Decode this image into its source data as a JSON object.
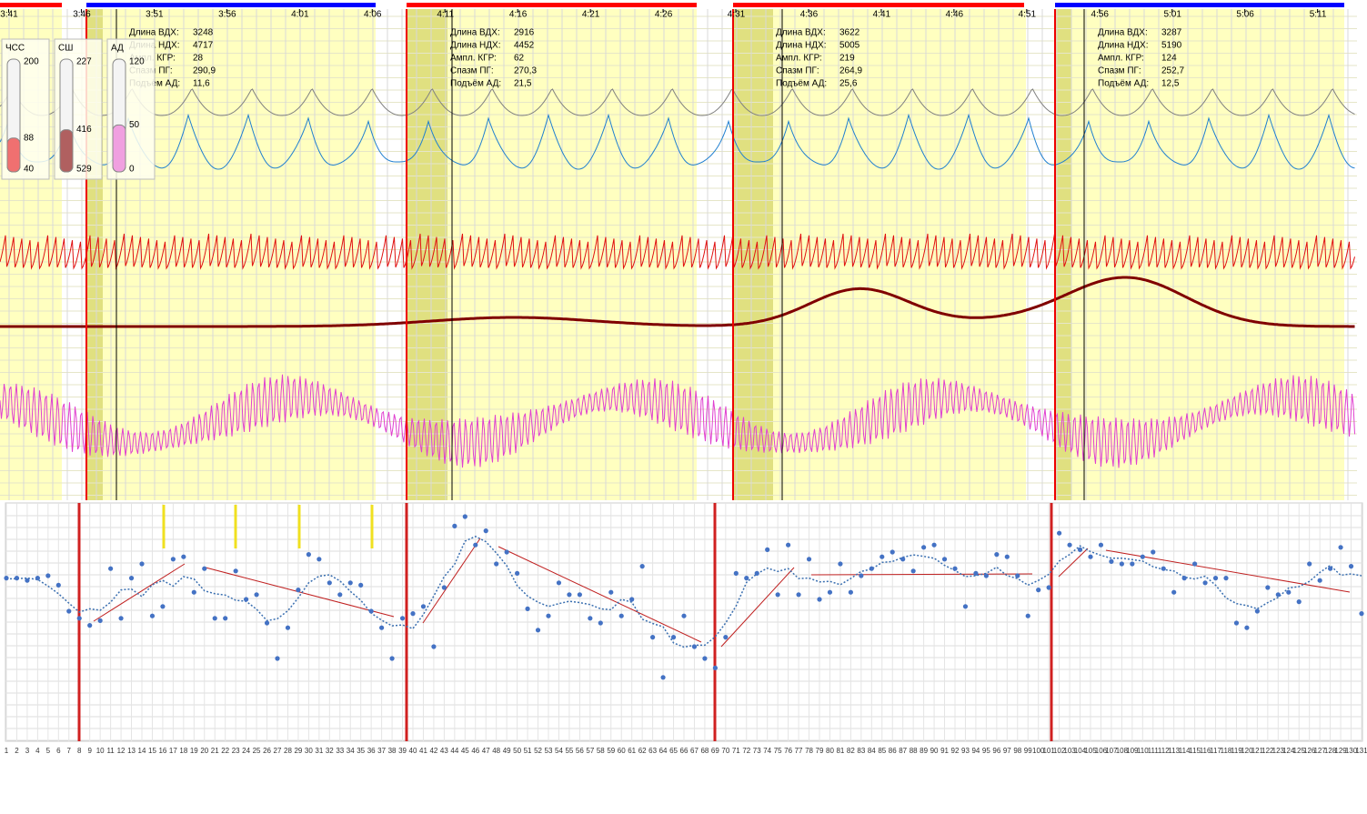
{
  "time_labels": [
    "3:41",
    "3:46",
    "3:51",
    "3:56",
    "4:01",
    "4:06",
    "4:11",
    "4:16",
    "4:21",
    "4:26",
    "4:31",
    "4:36",
    "4:41",
    "4:46",
    "4:51",
    "4:56",
    "5:01",
    "5:06",
    "5:11"
  ],
  "gauges": [
    {
      "label": "ЧСС",
      "top": 200,
      "mid": 88,
      "bottom": 40
    },
    {
      "label": "СШ",
      "top": 227,
      "mid": 416,
      "bottom": 529
    },
    {
      "label": "АД",
      "top": 120,
      "mid": 50,
      "bottom": 0
    }
  ],
  "info_panels": [
    {
      "rows": [
        {
          "label": "Длина ВДХ:",
          "value": "3248"
        },
        {
          "label": "Длина НДХ:",
          "value": "4717"
        },
        {
          "label": "Ампл. КГР:",
          "value": "28"
        },
        {
          "label": "Спазм ПГ:",
          "value": "290,9"
        },
        {
          "label": "Подъём АД:",
          "value": "11,6"
        }
      ]
    },
    {
      "rows": [
        {
          "label": "Длина ВДХ:",
          "value": "2916"
        },
        {
          "label": "Длина НДХ:",
          "value": "4452"
        },
        {
          "label": "Ампл. КГР:",
          "value": "62"
        },
        {
          "label": "Спазм ПГ:",
          "value": "270,3"
        },
        {
          "label": "Подъём АД:",
          "value": "21,5"
        }
      ]
    },
    {
      "rows": [
        {
          "label": "Длина ВДХ:",
          "value": "3622"
        },
        {
          "label": "Длина НДХ:",
          "value": "5005"
        },
        {
          "label": "Ампл. КГР:",
          "value": "219"
        },
        {
          "label": "Спазм ПГ:",
          "value": "264,9"
        },
        {
          "label": "Подъём АД:",
          "value": "25,6"
        }
      ]
    },
    {
      "rows": [
        {
          "label": "Длина ВДХ:",
          "value": "3287"
        },
        {
          "label": "Длина НДХ:",
          "value": "5190"
        },
        {
          "label": "Ампл. КГР:",
          "value": "124"
        },
        {
          "label": "Спазм ПГ:",
          "value": "252,7"
        },
        {
          "label": "Подъём АД:",
          "value": "12,5"
        }
      ]
    }
  ],
  "scatter": {
    "type": "scatter",
    "categories": [
      1,
      2,
      3,
      4,
      5,
      6,
      7,
      8,
      9,
      10,
      11,
      12,
      13,
      14,
      15,
      16,
      17,
      18,
      19,
      20,
      21,
      22,
      23,
      24,
      25,
      26,
      27,
      28,
      29,
      30,
      31,
      32,
      33,
      34,
      35,
      36,
      37,
      38,
      39,
      40,
      41,
      42,
      43,
      44,
      45,
      46,
      47,
      48,
      49,
      50,
      51,
      52,
      53,
      54,
      55,
      56,
      57,
      58,
      59,
      60,
      61,
      62,
      63,
      64,
      65,
      66,
      67,
      68,
      69,
      70,
      71,
      72,
      73,
      74,
      75,
      76,
      77,
      78,
      79,
      80,
      81,
      82,
      83,
      84,
      85,
      86,
      87,
      88,
      89,
      90,
      91,
      92,
      93,
      94,
      95,
      96,
      97,
      98,
      99,
      100,
      101,
      102,
      103,
      104,
      105,
      106,
      107,
      108,
      109,
      110,
      111,
      112,
      113,
      114,
      115,
      116,
      117,
      118,
      119,
      120,
      121,
      122,
      123,
      124,
      125,
      126,
      127,
      128,
      129,
      130,
      131
    ],
    "values": [
      69,
      69,
      68,
      69,
      70,
      66,
      55,
      52,
      49,
      51,
      73,
      52,
      69,
      75,
      53,
      57,
      77,
      78,
      63,
      73,
      52,
      52,
      72,
      60,
      62,
      50,
      35,
      48,
      64,
      79,
      77,
      67,
      62,
      67,
      66,
      55,
      48,
      35,
      52,
      54,
      57,
      40,
      65,
      91,
      95,
      83,
      89,
      75,
      80,
      71,
      56,
      47,
      53,
      67,
      62,
      62,
      52,
      50,
      63,
      53,
      60,
      74,
      44,
      27,
      44,
      53,
      40,
      35,
      31,
      44,
      71,
      69,
      71,
      81,
      62,
      83,
      62,
      77,
      60,
      63,
      75,
      63,
      70,
      73,
      78,
      80,
      77,
      72,
      82,
      83,
      77,
      73,
      57,
      71,
      70,
      79,
      78,
      70,
      53,
      64,
      65,
      88,
      83,
      81,
      78,
      83,
      76,
      75,
      75,
      78,
      80,
      73,
      63,
      69,
      75,
      67,
      69,
      69,
      50,
      48,
      55,
      65,
      62,
      63,
      59,
      75,
      68,
      73,
      82,
      74,
      54
    ],
    "color": "#4472c4",
    "ylim": [
      0,
      100
    ]
  }
}
